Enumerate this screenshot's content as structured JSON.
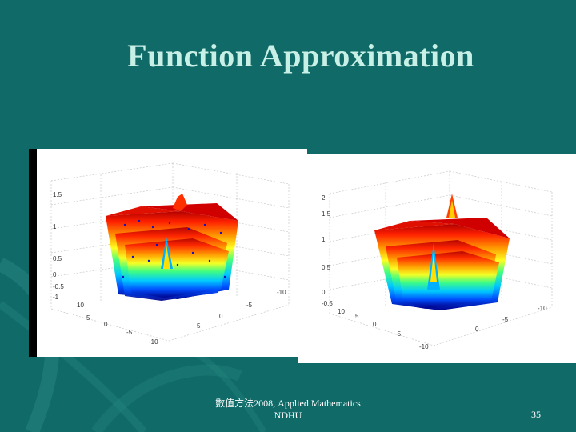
{
  "slide": {
    "title": "Function Approximation",
    "footer_line1": "數值方法2008, Applied Mathematics",
    "footer_line2": "NDHU",
    "page_number": "35"
  },
  "colors": {
    "background": "#0f6a68",
    "title": "#c8f0e6",
    "footer_text": "#ffffff"
  },
  "plots": {
    "left": {
      "z_ticks": [
        "1.5",
        "1",
        "0.5",
        "0",
        "-0.5",
        "-1"
      ],
      "y_ticks": [
        "10",
        "5",
        "0",
        "-5",
        "-10"
      ],
      "x_ticks": [
        "5",
        "0",
        "-5",
        "-10"
      ]
    },
    "right": {
      "z_ticks": [
        "2",
        "1.5",
        "1",
        "0.5",
        "0",
        "-0.5"
      ],
      "y_ticks": [
        "10",
        "5",
        "0",
        "-5",
        "-10"
      ],
      "x_ticks": [
        "0",
        "-5",
        "-10"
      ]
    }
  }
}
